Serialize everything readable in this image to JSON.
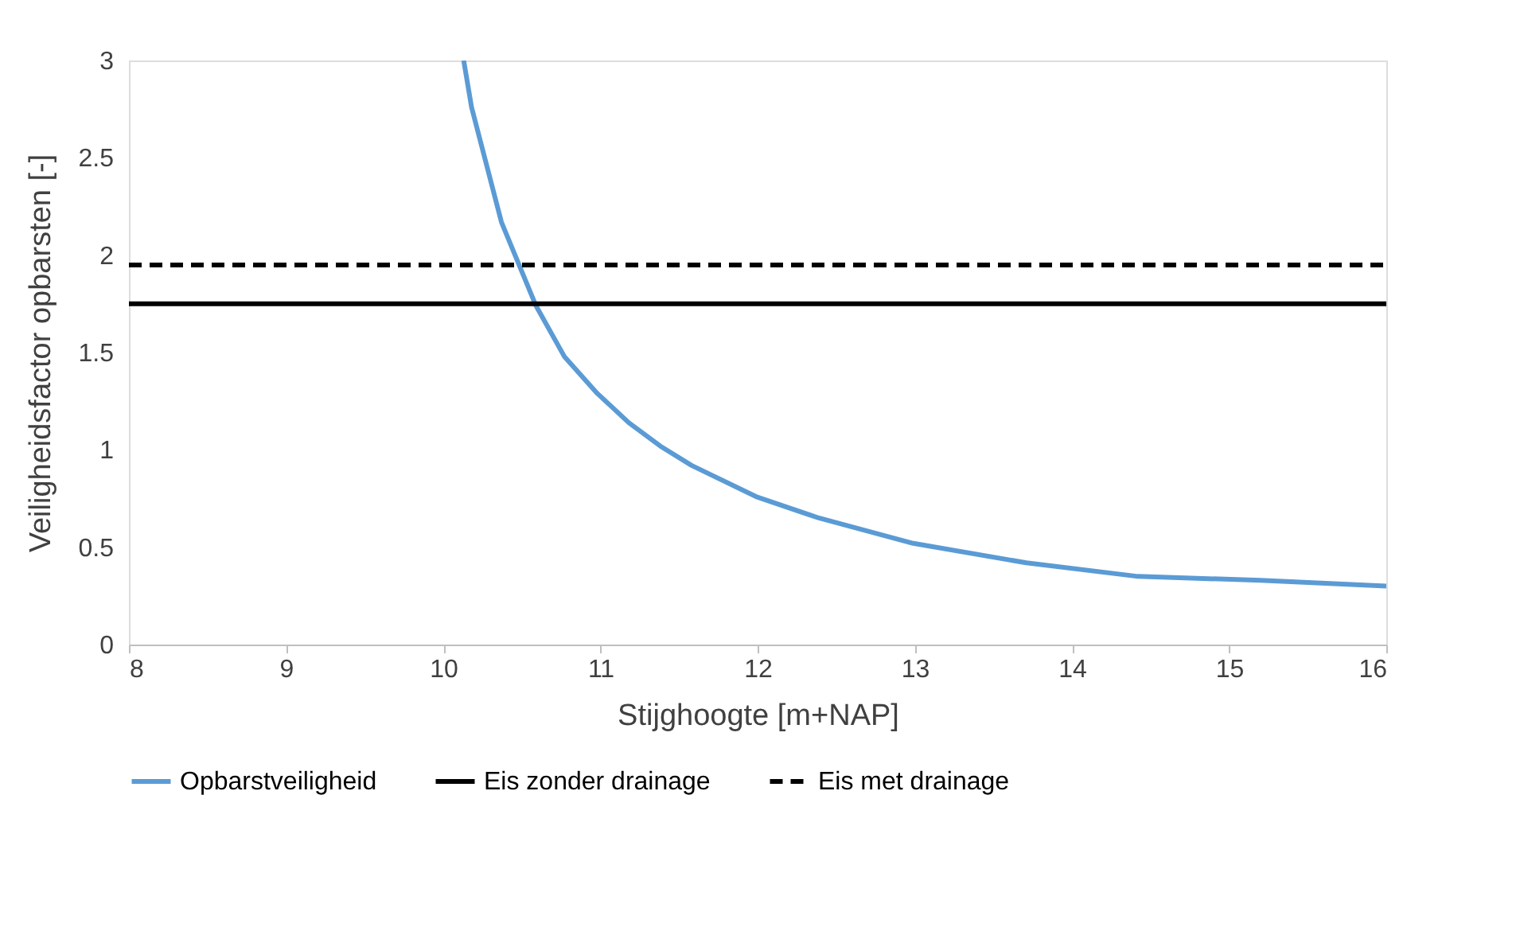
{
  "chart_data": {
    "type": "line",
    "xlabel": "Stijghoogte [m+NAP]",
    "ylabel": "Veiligheidsfactor opbarsten [-]",
    "xlim": [
      8,
      16
    ],
    "xticks": [
      8,
      9,
      10,
      11,
      12,
      13,
      14,
      15,
      16
    ],
    "ylim": [
      0,
      3
    ],
    "yticks": [
      0,
      0.5,
      1,
      1.5,
      2,
      2.5,
      3
    ],
    "grid": false,
    "legend": "bottom",
    "marker": "none",
    "series": [
      {
        "name": "Opbarstveiligheid",
        "color": "#5b9bd5",
        "line_style": "solid",
        "x": [
          10.13,
          10.18,
          10.37,
          10.59,
          10.77,
          10.98,
          11.18,
          11.38,
          11.58,
          11.99,
          12.39,
          12.99,
          13.71,
          14.42,
          15.2,
          16
        ],
        "values": [
          3.0,
          2.76,
          2.17,
          1.74,
          1.48,
          1.29,
          1.14,
          1.02,
          0.92,
          0.76,
          0.65,
          0.52,
          0.42,
          0.35,
          0.33,
          0.3
        ]
      },
      {
        "name": "Eis zonder drainage",
        "color": "#000000",
        "line_style": "solid",
        "x": [
          8,
          16
        ],
        "values": [
          1.75,
          1.75
        ]
      },
      {
        "name": "Eis met drainage",
        "color": "#000000",
        "line_style": "dashed",
        "x": [
          8,
          16
        ],
        "values": [
          1.95,
          1.95
        ]
      }
    ]
  }
}
